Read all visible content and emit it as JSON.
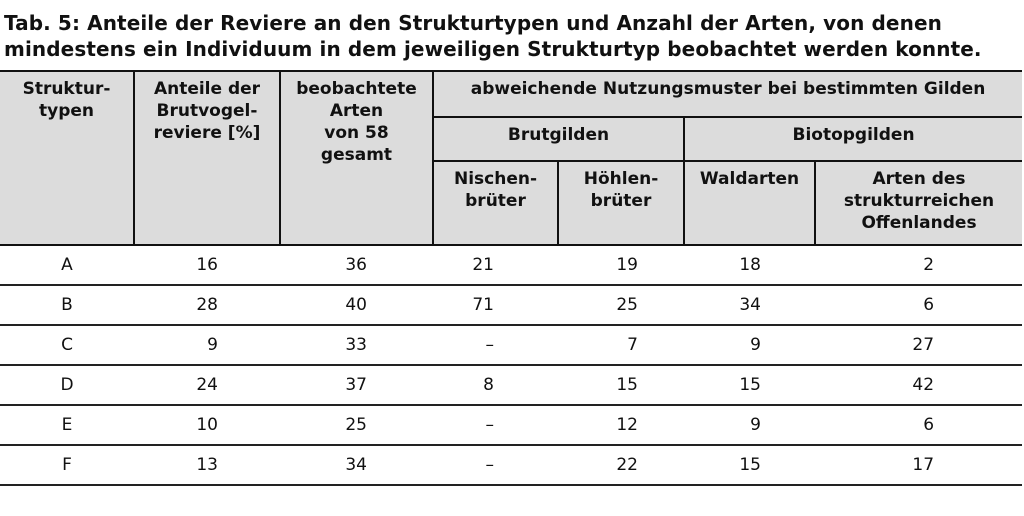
{
  "caption": {
    "line1": "Tab. 5: Anteile der Reviere an den Strukturtypen und Anzahl der Arten, von denen",
    "line2": "mindestens ein Individuum in dem jeweiligen Strukturtyp beobachtet werden konnte."
  },
  "headers": {
    "strukturtypen": "Struktur-\ntypen",
    "anteile": "Anteile der\nBrutvogel-\nreviere [%]",
    "arten": "beobachtete\nArten\nvon 58\ngesamt",
    "abweichende": "abweichende Nutzungsmuster bei bestimmten Gilden",
    "brutgilden": "Brutgilden",
    "biotopgilden": "Biotopgilden",
    "nischen": "Nischen-\nbrüter",
    "hoehlen": "Höhlen-\nbrüter",
    "waldarten": "Waldarten",
    "offenland": "Arten des\nstrukturreichen\nOffenlandes"
  },
  "rows": [
    {
      "typ": "A",
      "anteile": "16",
      "arten": "36",
      "nischen": "21",
      "hoehlen": "19",
      "wald": "18",
      "offen": "2"
    },
    {
      "typ": "B",
      "anteile": "28",
      "arten": "40",
      "nischen": "71",
      "hoehlen": "25",
      "wald": "34",
      "offen": "6"
    },
    {
      "typ": "C",
      "anteile": "9",
      "arten": "33",
      "nischen": "–",
      "hoehlen": "7",
      "wald": "9",
      "offen": "27"
    },
    {
      "typ": "D",
      "anteile": "24",
      "arten": "37",
      "nischen": "8",
      "hoehlen": "15",
      "wald": "15",
      "offen": "42"
    },
    {
      "typ": "E",
      "anteile": "10",
      "arten": "25",
      "nischen": "–",
      "hoehlen": "12",
      "wald": "9",
      "offen": "6"
    },
    {
      "typ": "F",
      "anteile": "13",
      "arten": "34",
      "nischen": "–",
      "hoehlen": "22",
      "wald": "15",
      "offen": "17"
    }
  ]
}
